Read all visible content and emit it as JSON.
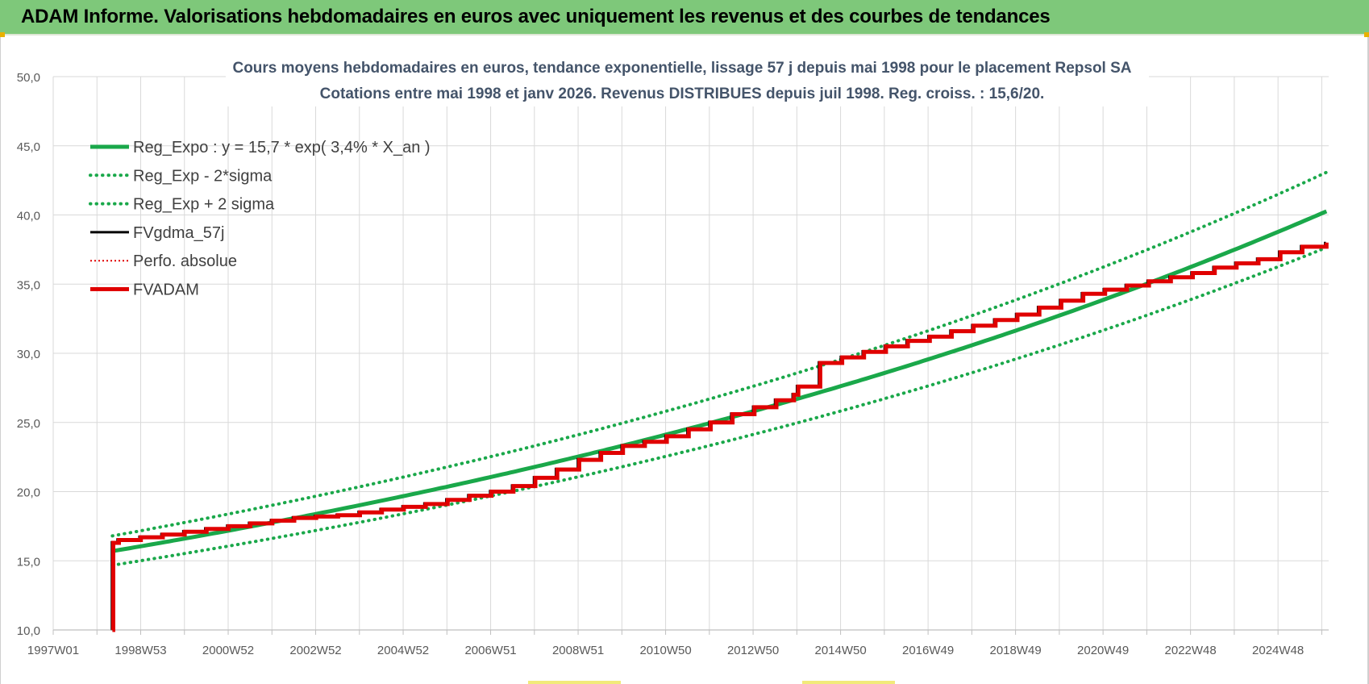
{
  "banner": {
    "title": "ADAM Informe. Valorisations hebdomadaires en euros avec uniquement les revenus et des courbes de tendances"
  },
  "colors": {
    "banner_bg": "#7ec87a",
    "reg_expo": "#1aa84a",
    "fv_gdma": "#000000",
    "perfo": "#e00000",
    "fvadam": "#e00000",
    "grid": "#d9d9d9"
  },
  "chart_data": {
    "type": "line",
    "title_line1": "Cours moyens hebdomadaires en euros, tendance exponentielle, lissage 57 j depuis mai 1998 pour le placement Repsol SA",
    "title_line2": "Cotations entre mai 1998 et janv 2026. Revenus DISTRIBUES depuis juil 1998. Reg. croiss. : 15,6/20.",
    "x_tick_labels": [
      "1997W01",
      "1998W53",
      "2000W52",
      "2002W52",
      "2004W52",
      "2006W51",
      "2008W51",
      "2010W50",
      "2012W50",
      "2014W50",
      "2016W49",
      "2018W49",
      "2020W49",
      "2022W48",
      "2024W48"
    ],
    "y_tick_labels": [
      "10,0",
      "15,0",
      "20,0",
      "25,0",
      "30,0",
      "35,0",
      "40,0",
      "45,0",
      "50,0"
    ],
    "xlim": [
      1997.0,
      2026.1
    ],
    "ylim": [
      10,
      50
    ],
    "grid": true,
    "legend_position": "top-left",
    "legend": [
      {
        "key": "reg_expo",
        "label": "Reg_Expo : y = 15,7 * exp( 3,4% *  X_an )",
        "style": "solid-thick",
        "color": "#1aa84a"
      },
      {
        "key": "reg_minus",
        "label": "Reg_Exp - 2*sigma",
        "style": "dotted",
        "color": "#1aa84a"
      },
      {
        "key": "reg_plus",
        "label": "Reg_Exp + 2 sigma",
        "style": "dotted",
        "color": "#1aa84a"
      },
      {
        "key": "fv_gdma",
        "label": "FVgdma_57j",
        "style": "solid",
        "color": "#000000"
      },
      {
        "key": "perfo",
        "label": "Perfo. absolue",
        "style": "dotted-thin",
        "color": "#e00000"
      },
      {
        "key": "fvadam",
        "label": "FVADAM",
        "style": "solid-thick",
        "color": "#e00000"
      }
    ],
    "regression": {
      "a": 15.7,
      "growth_pct": 3.4,
      "x0_year": 1998.35,
      "end_year": 2026.05,
      "upper_factor": 1.07,
      "lower_factor": 0.935
    },
    "series": [
      {
        "name": "FVADAM",
        "x": [
          1998.35,
          1998.37,
          1998.5,
          1999.0,
          1999.5,
          2000.0,
          2000.5,
          2001.0,
          2001.5,
          2002.0,
          2002.5,
          2003.0,
          2003.5,
          2004.0,
          2004.5,
          2005.0,
          2005.5,
          2006.0,
          2006.5,
          2007.0,
          2007.5,
          2008.0,
          2008.5,
          2009.0,
          2009.5,
          2010.0,
          2010.5,
          2011.0,
          2011.5,
          2012.0,
          2012.5,
          2013.0,
          2013.5,
          2013.9,
          2014.0,
          2014.5,
          2015.0,
          2015.5,
          2016.0,
          2016.5,
          2017.0,
          2017.5,
          2018.0,
          2018.5,
          2019.0,
          2019.5,
          2020.0,
          2020.5,
          2021.0,
          2021.5,
          2022.0,
          2022.5,
          2023.0,
          2023.5,
          2024.0,
          2024.5,
          2025.0,
          2025.5,
          2026.05
        ],
        "y": [
          10.0,
          16.3,
          16.5,
          16.7,
          16.9,
          17.1,
          17.3,
          17.5,
          17.7,
          17.9,
          18.1,
          18.2,
          18.3,
          18.5,
          18.7,
          18.9,
          19.1,
          19.4,
          19.7,
          20.0,
          20.4,
          21.0,
          21.6,
          22.3,
          22.8,
          23.3,
          23.6,
          24.0,
          24.5,
          25.0,
          25.6,
          26.1,
          26.6,
          27.0,
          27.6,
          29.3,
          29.7,
          30.1,
          30.5,
          30.9,
          31.2,
          31.6,
          32.0,
          32.4,
          32.8,
          33.3,
          33.8,
          34.3,
          34.6,
          34.9,
          35.2,
          35.5,
          35.8,
          36.2,
          36.5,
          36.8,
          37.3,
          37.7,
          38.0
        ]
      }
    ]
  }
}
